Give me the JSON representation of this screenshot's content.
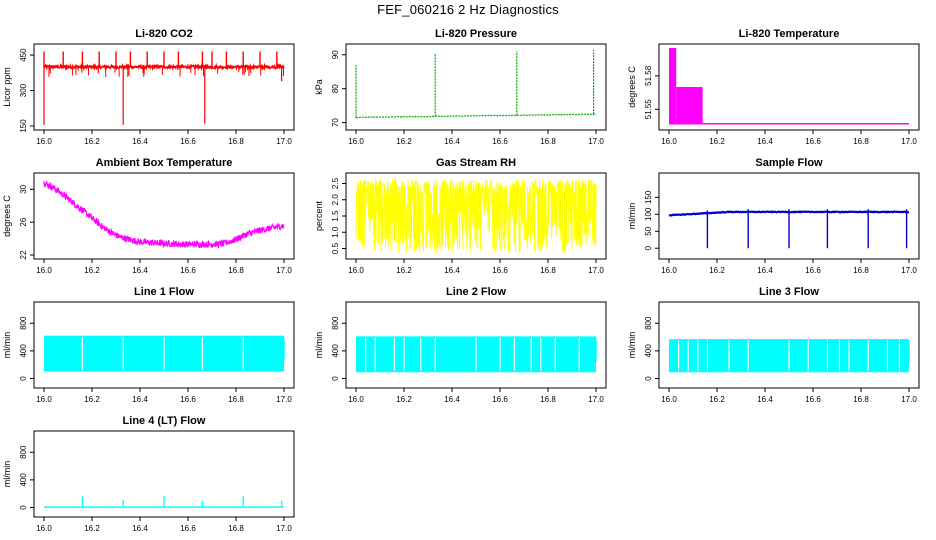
{
  "figure": {
    "title": "FEF_060216  2 Hz Diagnostics"
  },
  "chart_data": [
    {
      "type": "line",
      "title": "Li-820 CO2",
      "ylabel": "Licor ppm",
      "color": "#ff0000",
      "xlim": [
        16.0,
        17.0
      ],
      "ylim": [
        150,
        480
      ],
      "xticks": [
        16.0,
        16.2,
        16.4,
        16.6,
        16.8,
        17.0
      ],
      "xtick_labels": [
        "16.0",
        "16.2",
        "16.4",
        "16.6",
        "16.8",
        "17.0"
      ],
      "yticks": [
        150,
        300,
        450
      ],
      "ytick_labels": [
        "150",
        "300",
        "450"
      ],
      "baseline": 400,
      "spikes_up": [
        16.0,
        16.08,
        16.16,
        16.23,
        16.3,
        16.36,
        16.43,
        16.5,
        16.56,
        16.66,
        16.7,
        16.76,
        16.83,
        16.9,
        16.97
      ],
      "spikes_up_to": 465,
      "spikes_down": [
        [
          16.0,
          155
        ],
        [
          16.33,
          155
        ],
        [
          16.67,
          160
        ],
        [
          16.99,
          340
        ]
      ]
    },
    {
      "type": "line",
      "title": "Li-820 Pressure",
      "ylabel": "kPa",
      "color": "#00aa00",
      "xlim": [
        16.0,
        17.0
      ],
      "ylim": [
        69,
        92
      ],
      "xticks": [
        16.0,
        16.2,
        16.4,
        16.6,
        16.8,
        17.0
      ],
      "xtick_labels": [
        "16.0",
        "16.2",
        "16.4",
        "16.6",
        "16.8",
        "17.0"
      ],
      "yticks": [
        70,
        80,
        90
      ],
      "ytick_labels": [
        "70",
        "80",
        "90"
      ],
      "baseline_start": 71.5,
      "baseline_end": 72.5,
      "spikes_up": [
        [
          16.0,
          87
        ],
        [
          16.33,
          90.5
        ],
        [
          16.67,
          91
        ],
        [
          16.99,
          91.5
        ]
      ]
    },
    {
      "type": "line",
      "title": "Li-820 Temperature",
      "ylabel": "degrees C",
      "color": "#ff00ff",
      "xlim": [
        16.0,
        17.0
      ],
      "ylim": [
        51.535,
        51.605
      ],
      "xticks": [
        16.0,
        16.2,
        16.4,
        16.6,
        16.8,
        17.0
      ],
      "xtick_labels": [
        "16.0",
        "16.2",
        "16.4",
        "16.6",
        "16.8",
        "17.0"
      ],
      "yticks": [
        51.55,
        51.58
      ],
      "ytick_labels": [
        "51.55",
        "51.58"
      ],
      "baseline": 51.537,
      "dense_levels": [
        51.605,
        51.57,
        51.537
      ],
      "dense_end": [
        16.03,
        16.14
      ]
    },
    {
      "type": "line",
      "title": "Ambient Box Temperature",
      "ylabel": "degrees C",
      "color": "#ff00ff",
      "xlim": [
        16.0,
        17.0
      ],
      "ylim": [
        22,
        31.5
      ],
      "xticks": [
        16.0,
        16.2,
        16.4,
        16.6,
        16.8,
        17.0
      ],
      "xtick_labels": [
        "16.0",
        "16.2",
        "16.4",
        "16.6",
        "16.8",
        "17.0"
      ],
      "yticks": [
        22,
        26,
        30
      ],
      "ytick_labels": [
        "22",
        "26",
        "30"
      ],
      "x": [
        16.0,
        16.05,
        16.1,
        16.15,
        16.2,
        16.25,
        16.3,
        16.35,
        16.4,
        16.5,
        16.6,
        16.7,
        16.75,
        16.8,
        16.85,
        16.9,
        16.95,
        17.0
      ],
      "y": [
        30.8,
        30.0,
        28.9,
        27.7,
        26.5,
        25.3,
        24.4,
        23.9,
        23.6,
        23.4,
        23.3,
        23.3,
        23.4,
        23.9,
        24.6,
        25.0,
        25.3,
        25.6
      ],
      "noise": 0.8
    },
    {
      "type": "line",
      "title": "Gas Stream RH",
      "ylabel": "percent",
      "color": "#ffff00",
      "xlim": [
        16.0,
        17.0
      ],
      "ylim": [
        0.3,
        2.7
      ],
      "xticks": [
        16.0,
        16.2,
        16.4,
        16.6,
        16.8,
        17.0
      ],
      "xtick_labels": [
        "16.0",
        "16.2",
        "16.4",
        "16.6",
        "16.8",
        "17.0"
      ],
      "yticks": [
        0.5,
        1.0,
        1.5,
        2.0,
        2.5
      ],
      "ytick_labels": [
        "0.5",
        "1.0",
        "1.5",
        "2.0",
        "2.5"
      ],
      "band": [
        0.35,
        2.65
      ]
    },
    {
      "type": "line",
      "title": "Sample Flow",
      "ylabel": "ml/min",
      "color": "#0000cc",
      "xlim": [
        16.0,
        17.0
      ],
      "ylim": [
        -20,
        210
      ],
      "xticks": [
        16.0,
        16.2,
        16.4,
        16.6,
        16.8,
        17.0
      ],
      "xtick_labels": [
        "16.0",
        "16.2",
        "16.4",
        "16.6",
        "16.8",
        "17.0"
      ],
      "yticks": [
        0,
        50,
        100,
        150
      ],
      "ytick_labels": [
        "0",
        "50",
        "100",
        "150"
      ],
      "baseline_start": 97,
      "baseline_end": 107,
      "dips": [
        16.16,
        16.33,
        16.5,
        16.66,
        16.83,
        16.99
      ]
    },
    {
      "type": "line",
      "title": "Line 1 Flow",
      "ylabel": "ml/min",
      "color": "#00ffff",
      "xlim": [
        16.0,
        17.0
      ],
      "ylim": [
        -80,
        1050
      ],
      "xticks": [
        16.0,
        16.2,
        16.4,
        16.6,
        16.8,
        17.0
      ],
      "xtick_labels": [
        "16.0",
        "16.2",
        "16.4",
        "16.6",
        "16.8",
        "17.0"
      ],
      "yticks": [
        0,
        400,
        800
      ],
      "ytick_labels": [
        "0",
        "400",
        "800"
      ],
      "band": [
        100,
        620
      ],
      "gaps": [
        16.16,
        16.33,
        16.5,
        16.66,
        16.83
      ]
    },
    {
      "type": "line",
      "title": "Line 2 Flow",
      "ylabel": "ml/min",
      "color": "#00ffff",
      "xlim": [
        16.0,
        17.0
      ],
      "ylim": [
        -80,
        1050
      ],
      "xticks": [
        16.0,
        16.2,
        16.4,
        16.6,
        16.8,
        17.0
      ],
      "xtick_labels": [
        "16.0",
        "16.2",
        "16.4",
        "16.6",
        "16.8",
        "17.0"
      ],
      "yticks": [
        0,
        400,
        800
      ],
      "ytick_labels": [
        "0",
        "400",
        "800"
      ],
      "band": [
        90,
        610
      ],
      "gaps": [
        16.04,
        16.08,
        16.16,
        16.2,
        16.27,
        16.33,
        16.5,
        16.6,
        16.66,
        16.73,
        16.77,
        16.83,
        16.93
      ]
    },
    {
      "type": "line",
      "title": "Line 3 Flow",
      "ylabel": "ml/min",
      "color": "#00ffff",
      "xlim": [
        16.0,
        17.0
      ],
      "ylim": [
        -80,
        1050
      ],
      "xticks": [
        16.0,
        16.2,
        16.4,
        16.6,
        16.8,
        17.0
      ],
      "xtick_labels": [
        "16.0",
        "16.2",
        "16.4",
        "16.6",
        "16.8",
        "17.0"
      ],
      "yticks": [
        0,
        400,
        800
      ],
      "ytick_labels": [
        "0",
        "400",
        "800"
      ],
      "band": [
        90,
        570
      ],
      "gaps": [
        16.04,
        16.08,
        16.12,
        16.16,
        16.25,
        16.33,
        16.5,
        16.58,
        16.66,
        16.71,
        16.75,
        16.83,
        16.91,
        16.96
      ]
    },
    {
      "type": "line",
      "title": "Line 4 (LT) Flow",
      "ylabel": "ml/min",
      "color": "#00ffff",
      "xlim": [
        16.0,
        17.0
      ],
      "ylim": [
        -80,
        1050
      ],
      "xticks": [
        16.0,
        16.2,
        16.4,
        16.6,
        16.8,
        17.0
      ],
      "xtick_labels": [
        "16.0",
        "16.2",
        "16.4",
        "16.6",
        "16.8",
        "17.0"
      ],
      "yticks": [
        0,
        400,
        800
      ],
      "ytick_labels": [
        "0",
        "400",
        "800"
      ],
      "baseline": 5,
      "spikes_up": [
        [
          16.16,
          160
        ],
        [
          16.33,
          110
        ],
        [
          16.5,
          165
        ],
        [
          16.66,
          100
        ],
        [
          16.83,
          160
        ],
        [
          16.99,
          100
        ]
      ]
    }
  ]
}
